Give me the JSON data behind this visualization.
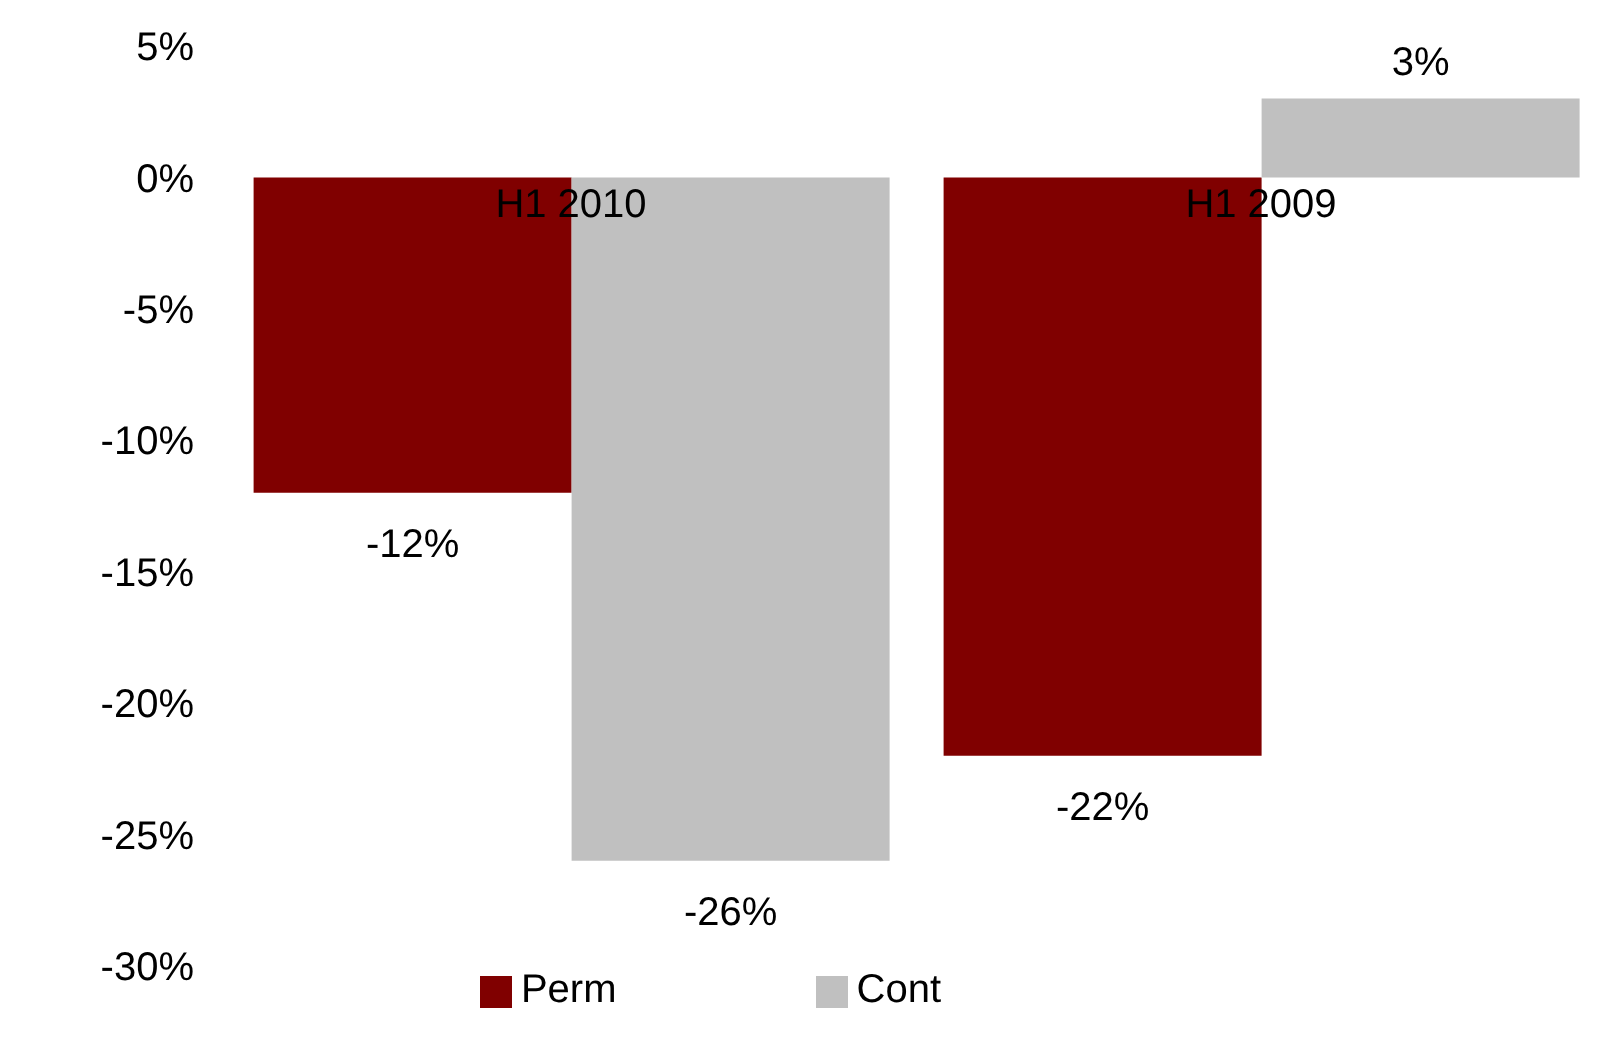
{
  "chart_data": {
    "type": "bar",
    "categories": [
      "H1 2010",
      "H1 2009"
    ],
    "series": [
      {
        "name": "Perm",
        "color": "#800000",
        "values": [
          -12,
          -22
        ],
        "value_labels": [
          "-12%",
          "-22%"
        ]
      },
      {
        "name": "Cont",
        "color": "#c0c0c0",
        "values": [
          -26,
          3
        ],
        "value_labels": [
          "-26%",
          "3%"
        ]
      }
    ],
    "ylim": [
      -30,
      5
    ],
    "yticks": [
      {
        "value": 5,
        "label": "5%"
      },
      {
        "value": 0,
        "label": "0%"
      },
      {
        "value": -5,
        "label": "-5%"
      },
      {
        "value": -10,
        "label": "-10%"
      },
      {
        "value": -15,
        "label": "-15%"
      },
      {
        "value": -20,
        "label": "-20%"
      },
      {
        "value": -25,
        "label": "-25%"
      },
      {
        "value": -30,
        "label": "-30%"
      }
    ],
    "legend": "bottom"
  }
}
